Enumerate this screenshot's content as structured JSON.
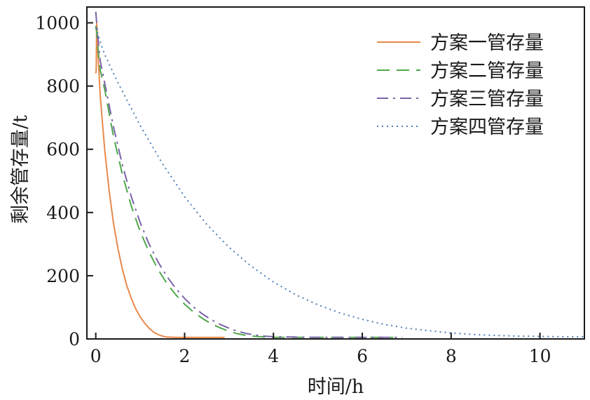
{
  "chart_data": {
    "type": "line",
    "title": "",
    "xlabel": "时间/h",
    "ylabel": "剩余管存量/t",
    "xlim": [
      -0.2,
      11
    ],
    "ylim": [
      0,
      1050
    ],
    "xticks": [
      0,
      2,
      4,
      6,
      8,
      10
    ],
    "yticks": [
      0,
      200,
      400,
      600,
      800,
      1000
    ],
    "grid": false,
    "legend_position": "top-right",
    "series": [
      {
        "name": "方案一管存量",
        "color": "#E8894A",
        "dash": "solid",
        "x": [
          0,
          0.01,
          0.02,
          0.05,
          0.1,
          0.2,
          0.3,
          0.4,
          0.5,
          0.6,
          0.7,
          0.8,
          0.9,
          1.0,
          1.1,
          1.2,
          1.3,
          1.4,
          1.5,
          1.6,
          1.8,
          2.0,
          2.4,
          2.9
        ],
        "y": [
          840,
          850,
          1000,
          900,
          770,
          600,
          470,
          365,
          285,
          220,
          168,
          128,
          95,
          70,
          50,
          34,
          22,
          14,
          9,
          6,
          5,
          5,
          5,
          5
        ]
      },
      {
        "name": "方案二管存量",
        "color": "#4FA84A",
        "dash": "18,10",
        "x": [
          0,
          0.02,
          0.05,
          0.1,
          0.2,
          0.4,
          0.6,
          0.8,
          1.0,
          1.2,
          1.4,
          1.6,
          1.8,
          2.0,
          2.2,
          2.4,
          2.6,
          2.8,
          3.0,
          3.2,
          3.4,
          3.6,
          3.8,
          4.0,
          4.5,
          5.0,
          5.5,
          6.0,
          6.7
        ],
        "y": [
          990,
          970,
          920,
          850,
          790,
          640,
          520,
          420,
          340,
          275,
          220,
          176,
          140,
          110,
          85,
          65,
          48,
          35,
          24,
          16,
          11,
          8,
          6,
          5,
          5,
          5,
          5,
          5,
          5
        ]
      },
      {
        "name": "方案三管存量",
        "color": "#7B63A8",
        "dash": "16,7,3,7",
        "x": [
          0,
          0.02,
          0.05,
          0.1,
          0.2,
          0.4,
          0.6,
          0.8,
          1.0,
          1.2,
          1.4,
          1.6,
          1.8,
          2.0,
          2.2,
          2.4,
          2.6,
          2.8,
          3.0,
          3.2,
          3.4,
          3.6,
          3.8,
          4.0,
          4.5,
          5.0,
          5.5,
          6.0,
          6.5,
          6.9
        ],
        "y": [
          1035,
          1000,
          950,
          880,
          810,
          670,
          550,
          450,
          368,
          300,
          244,
          198,
          160,
          128,
          101,
          79,
          61,
          46,
          34,
          24,
          17,
          12,
          9,
          7,
          6,
          5,
          5,
          5,
          5,
          5
        ]
      },
      {
        "name": "方案四管存量",
        "color": "#4A7DB5",
        "dash": "2,5",
        "x": [
          0,
          0.05,
          0.1,
          0.2,
          0.5,
          1.0,
          1.5,
          2.0,
          2.5,
          3.0,
          3.5,
          4.0,
          4.5,
          5.0,
          5.5,
          6.0,
          6.5,
          7.0,
          7.5,
          8.0,
          8.5,
          9.0,
          9.5,
          10.0,
          10.5,
          11.0
        ],
        "y": [
          985,
          965,
          940,
          900,
          810,
          675,
          555,
          450,
          362,
          290,
          230,
          180,
          140,
          108,
          82,
          62,
          46,
          34,
          26,
          19,
          14,
          11,
          9,
          8,
          7,
          7
        ]
      }
    ]
  }
}
